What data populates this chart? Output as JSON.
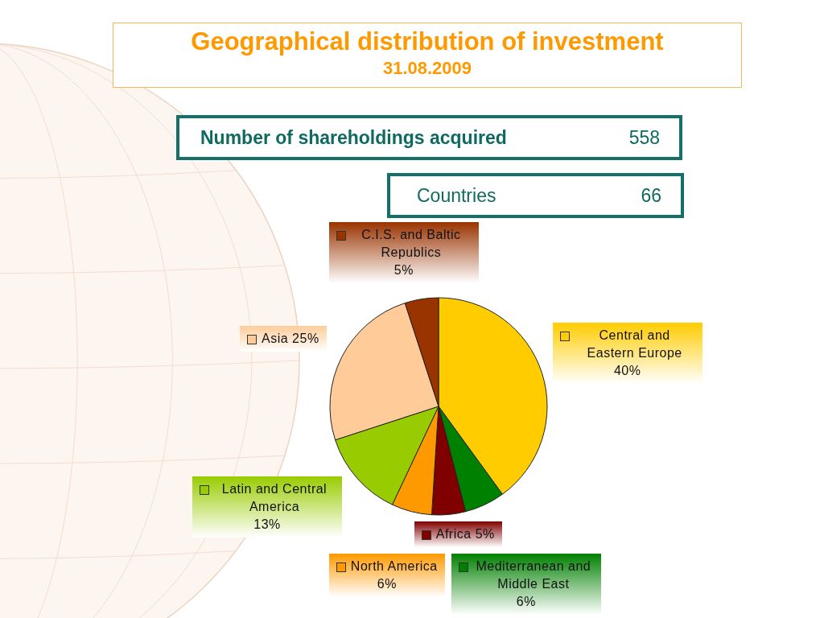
{
  "chart_data": {
    "type": "pie",
    "title": "Geographical distribution of investment",
    "subtitle": "31.08.2009",
    "categories": [
      "Central and Eastern Europe",
      "Mediterranean and Middle East",
      "Africa",
      "North America",
      "Latin and Central America",
      "Asia",
      "C.I.S. and Baltic Republics"
    ],
    "values": [
      40,
      6,
      5,
      6,
      13,
      25,
      5
    ],
    "colors": [
      "#ffcc00",
      "#008000",
      "#800000",
      "#ff9900",
      "#99cc00",
      "#ffcc99",
      "#993300"
    ],
    "value_labels": [
      "40%",
      "6%",
      "5%",
      "6%",
      "13%",
      "25%",
      "5%"
    ],
    "legend": "left",
    "annotations": [
      "Number of shareholdings acquired",
      "558",
      "Countries",
      "66"
    ]
  }
}
